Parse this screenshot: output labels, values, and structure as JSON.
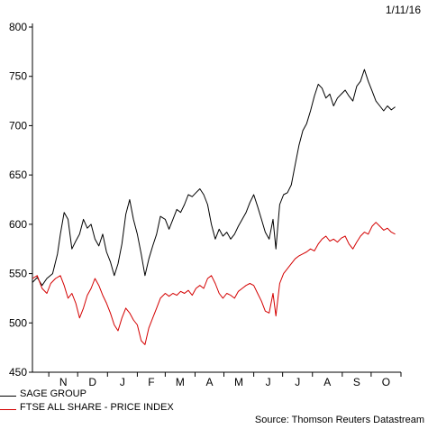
{
  "date_stamp": "1/11/16",
  "source": "Source: Thomson Reuters Datastream",
  "chart_data": {
    "type": "line",
    "ylim": [
      450,
      800
    ],
    "y_ticks": [
      450,
      500,
      550,
      600,
      650,
      700,
      750,
      800
    ],
    "x_ticks": [
      "N",
      "D",
      "J",
      "F",
      "M",
      "A",
      "M",
      "J",
      "J",
      "A",
      "S",
      "O"
    ],
    "x_range": [
      "2015-10-15",
      "2016-11-01"
    ],
    "series": [
      {
        "name": "SAGE GROUP",
        "color": "#000000",
        "points": [
          [
            "2015-10-15",
            541
          ],
          [
            "2015-10-20",
            546
          ],
          [
            "2015-10-25",
            538
          ],
          [
            "2015-10-30",
            545
          ],
          [
            "2015-11-05",
            550
          ],
          [
            "2015-11-10",
            570
          ],
          [
            "2015-11-13",
            590
          ],
          [
            "2015-11-17",
            612
          ],
          [
            "2015-11-21",
            605
          ],
          [
            "2015-11-25",
            575
          ],
          [
            "2015-11-29",
            583
          ],
          [
            "2015-12-03",
            590
          ],
          [
            "2015-12-07",
            605
          ],
          [
            "2015-12-11",
            596
          ],
          [
            "2015-12-15",
            600
          ],
          [
            "2015-12-19",
            585
          ],
          [
            "2015-12-23",
            578
          ],
          [
            "2015-12-27",
            590
          ],
          [
            "2015-12-31",
            572
          ],
          [
            "2016-01-04",
            562
          ],
          [
            "2016-01-08",
            548
          ],
          [
            "2016-01-12",
            560
          ],
          [
            "2016-01-16",
            580
          ],
          [
            "2016-01-20",
            610
          ],
          [
            "2016-01-24",
            625
          ],
          [
            "2016-01-28",
            605
          ],
          [
            "2016-02-01",
            590
          ],
          [
            "2016-02-05",
            570
          ],
          [
            "2016-02-09",
            548
          ],
          [
            "2016-02-13",
            565
          ],
          [
            "2016-02-17",
            578
          ],
          [
            "2016-02-21",
            590
          ],
          [
            "2016-02-25",
            608
          ],
          [
            "2016-03-01",
            605
          ],
          [
            "2016-03-05",
            595
          ],
          [
            "2016-03-09",
            605
          ],
          [
            "2016-03-13",
            615
          ],
          [
            "2016-03-17",
            612
          ],
          [
            "2016-03-21",
            620
          ],
          [
            "2016-03-25",
            630
          ],
          [
            "2016-03-29",
            628
          ],
          [
            "2016-04-02",
            632
          ],
          [
            "2016-04-06",
            636
          ],
          [
            "2016-04-10",
            630
          ],
          [
            "2016-04-14",
            620
          ],
          [
            "2016-04-18",
            600
          ],
          [
            "2016-04-22",
            585
          ],
          [
            "2016-04-26",
            595
          ],
          [
            "2016-04-30",
            588
          ],
          [
            "2016-05-04",
            592
          ],
          [
            "2016-05-08",
            585
          ],
          [
            "2016-05-12",
            590
          ],
          [
            "2016-05-16",
            598
          ],
          [
            "2016-05-20",
            605
          ],
          [
            "2016-05-24",
            612
          ],
          [
            "2016-05-28",
            622
          ],
          [
            "2016-06-01",
            630
          ],
          [
            "2016-06-05",
            618
          ],
          [
            "2016-06-09",
            605
          ],
          [
            "2016-06-13",
            592
          ],
          [
            "2016-06-17",
            585
          ],
          [
            "2016-06-21",
            605
          ],
          [
            "2016-06-24",
            575
          ],
          [
            "2016-06-28",
            620
          ],
          [
            "2016-07-02",
            630
          ],
          [
            "2016-07-06",
            632
          ],
          [
            "2016-07-10",
            640
          ],
          [
            "2016-07-14",
            660
          ],
          [
            "2016-07-18",
            680
          ],
          [
            "2016-07-22",
            695
          ],
          [
            "2016-07-26",
            702
          ],
          [
            "2016-07-30",
            715
          ],
          [
            "2016-08-03",
            730
          ],
          [
            "2016-08-07",
            742
          ],
          [
            "2016-08-11",
            738
          ],
          [
            "2016-08-15",
            728
          ],
          [
            "2016-08-19",
            732
          ],
          [
            "2016-08-23",
            720
          ],
          [
            "2016-08-27",
            728
          ],
          [
            "2016-08-31",
            732
          ],
          [
            "2016-09-04",
            736
          ],
          [
            "2016-09-08",
            730
          ],
          [
            "2016-09-12",
            725
          ],
          [
            "2016-09-16",
            740
          ],
          [
            "2016-09-20",
            745
          ],
          [
            "2016-09-24",
            757
          ],
          [
            "2016-09-28",
            745
          ],
          [
            "2016-10-02",
            735
          ],
          [
            "2016-10-06",
            725
          ],
          [
            "2016-10-10",
            720
          ],
          [
            "2016-10-14",
            715
          ],
          [
            "2016-10-18",
            720
          ],
          [
            "2016-10-22",
            716
          ],
          [
            "2016-10-26",
            719
          ]
        ]
      },
      {
        "name": "FTSE ALL SHARE - PRICE INDEX",
        "color": "#d40000",
        "points": [
          [
            "2015-10-15",
            545
          ],
          [
            "2015-10-20",
            548
          ],
          [
            "2015-10-25",
            535
          ],
          [
            "2015-10-30",
            530
          ],
          [
            "2015-11-03",
            540
          ],
          [
            "2015-11-08",
            545
          ],
          [
            "2015-11-13",
            548
          ],
          [
            "2015-11-17",
            538
          ],
          [
            "2015-11-21",
            525
          ],
          [
            "2015-11-25",
            530
          ],
          [
            "2015-11-29",
            520
          ],
          [
            "2015-12-03",
            505
          ],
          [
            "2015-12-07",
            515
          ],
          [
            "2015-12-11",
            528
          ],
          [
            "2015-12-15",
            535
          ],
          [
            "2015-12-19",
            545
          ],
          [
            "2015-12-23",
            538
          ],
          [
            "2015-12-27",
            528
          ],
          [
            "2015-12-31",
            520
          ],
          [
            "2016-01-04",
            510
          ],
          [
            "2016-01-08",
            498
          ],
          [
            "2016-01-12",
            492
          ],
          [
            "2016-01-16",
            505
          ],
          [
            "2016-01-20",
            515
          ],
          [
            "2016-01-24",
            510
          ],
          [
            "2016-01-28",
            503
          ],
          [
            "2016-02-01",
            498
          ],
          [
            "2016-02-05",
            482
          ],
          [
            "2016-02-09",
            478
          ],
          [
            "2016-02-13",
            495
          ],
          [
            "2016-02-17",
            505
          ],
          [
            "2016-02-21",
            515
          ],
          [
            "2016-02-25",
            525
          ],
          [
            "2016-03-01",
            530
          ],
          [
            "2016-03-05",
            527
          ],
          [
            "2016-03-09",
            530
          ],
          [
            "2016-03-13",
            528
          ],
          [
            "2016-03-17",
            532
          ],
          [
            "2016-03-21",
            530
          ],
          [
            "2016-03-25",
            533
          ],
          [
            "2016-03-29",
            528
          ],
          [
            "2016-04-02",
            535
          ],
          [
            "2016-04-06",
            538
          ],
          [
            "2016-04-10",
            535
          ],
          [
            "2016-04-14",
            545
          ],
          [
            "2016-04-18",
            548
          ],
          [
            "2016-04-22",
            540
          ],
          [
            "2016-04-26",
            530
          ],
          [
            "2016-04-30",
            525
          ],
          [
            "2016-05-04",
            530
          ],
          [
            "2016-05-08",
            528
          ],
          [
            "2016-05-12",
            525
          ],
          [
            "2016-05-16",
            532
          ],
          [
            "2016-05-20",
            535
          ],
          [
            "2016-05-24",
            538
          ],
          [
            "2016-05-28",
            540
          ],
          [
            "2016-06-01",
            538
          ],
          [
            "2016-06-05",
            530
          ],
          [
            "2016-06-09",
            522
          ],
          [
            "2016-06-13",
            512
          ],
          [
            "2016-06-17",
            510
          ],
          [
            "2016-06-21",
            530
          ],
          [
            "2016-06-24",
            507
          ],
          [
            "2016-06-28",
            540
          ],
          [
            "2016-07-02",
            550
          ],
          [
            "2016-07-06",
            555
          ],
          [
            "2016-07-10",
            560
          ],
          [
            "2016-07-14",
            565
          ],
          [
            "2016-07-18",
            568
          ],
          [
            "2016-07-22",
            570
          ],
          [
            "2016-07-26",
            572
          ],
          [
            "2016-07-30",
            575
          ],
          [
            "2016-08-03",
            573
          ],
          [
            "2016-08-07",
            580
          ],
          [
            "2016-08-11",
            585
          ],
          [
            "2016-08-15",
            588
          ],
          [
            "2016-08-19",
            583
          ],
          [
            "2016-08-23",
            585
          ],
          [
            "2016-08-27",
            582
          ],
          [
            "2016-08-31",
            586
          ],
          [
            "2016-09-04",
            588
          ],
          [
            "2016-09-08",
            580
          ],
          [
            "2016-09-12",
            575
          ],
          [
            "2016-09-16",
            582
          ],
          [
            "2016-09-20",
            588
          ],
          [
            "2016-09-24",
            592
          ],
          [
            "2016-09-28",
            590
          ],
          [
            "2016-10-02",
            598
          ],
          [
            "2016-10-06",
            602
          ],
          [
            "2016-10-10",
            598
          ],
          [
            "2016-10-14",
            594
          ],
          [
            "2016-10-18",
            596
          ],
          [
            "2016-10-22",
            592
          ],
          [
            "2016-10-26",
            590
          ]
        ]
      }
    ]
  }
}
